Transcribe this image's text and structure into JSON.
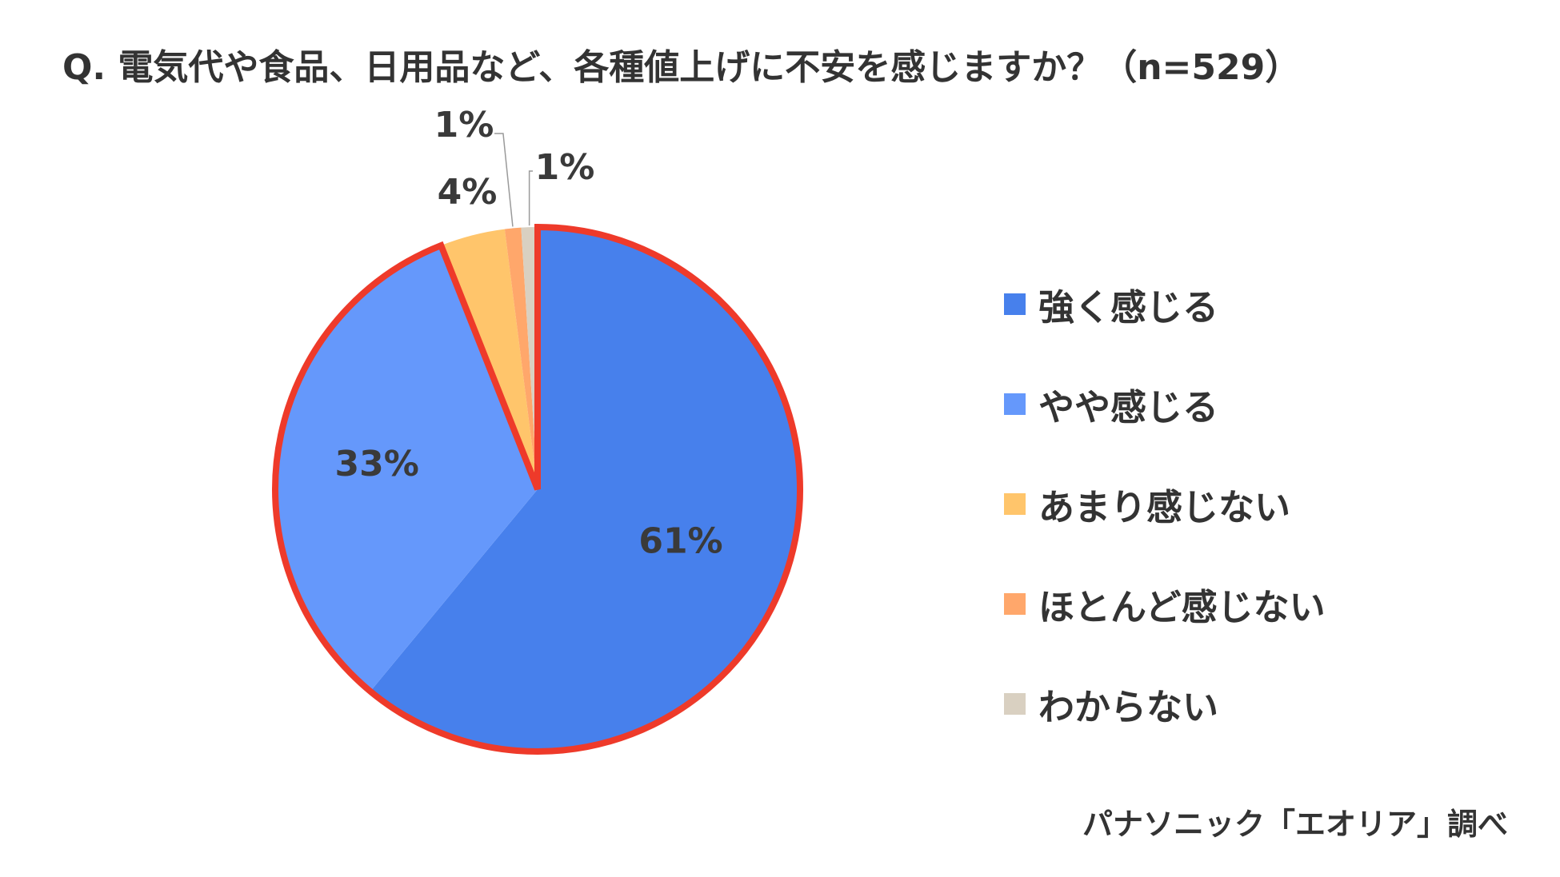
{
  "chart_data": {
    "type": "pie",
    "title": "Q. 電気代や食品、日用品など、各種値上げに不安を感じますか？（n=529）",
    "categories": [
      "強く感じる",
      "やや感じる",
      "あまり感じない",
      "ほとんど感じない",
      "わからない"
    ],
    "values": [
      61,
      33,
      4,
      1,
      1
    ],
    "value_labels": [
      "61%",
      "33%",
      "4%",
      "1%",
      "1%"
    ],
    "colors": [
      "#4780EC",
      "#6598FB",
      "#FFC56B",
      "#FFA76B",
      "#D9D0C1"
    ],
    "highlight_color": "#EE3A2A",
    "highlighted_slices": [
      "強く感じる",
      "やや感じる"
    ],
    "start_angle_deg": 0,
    "direction": "clockwise",
    "legend_position": "right"
  },
  "source": "パナソニック「エオリア」調べ"
}
